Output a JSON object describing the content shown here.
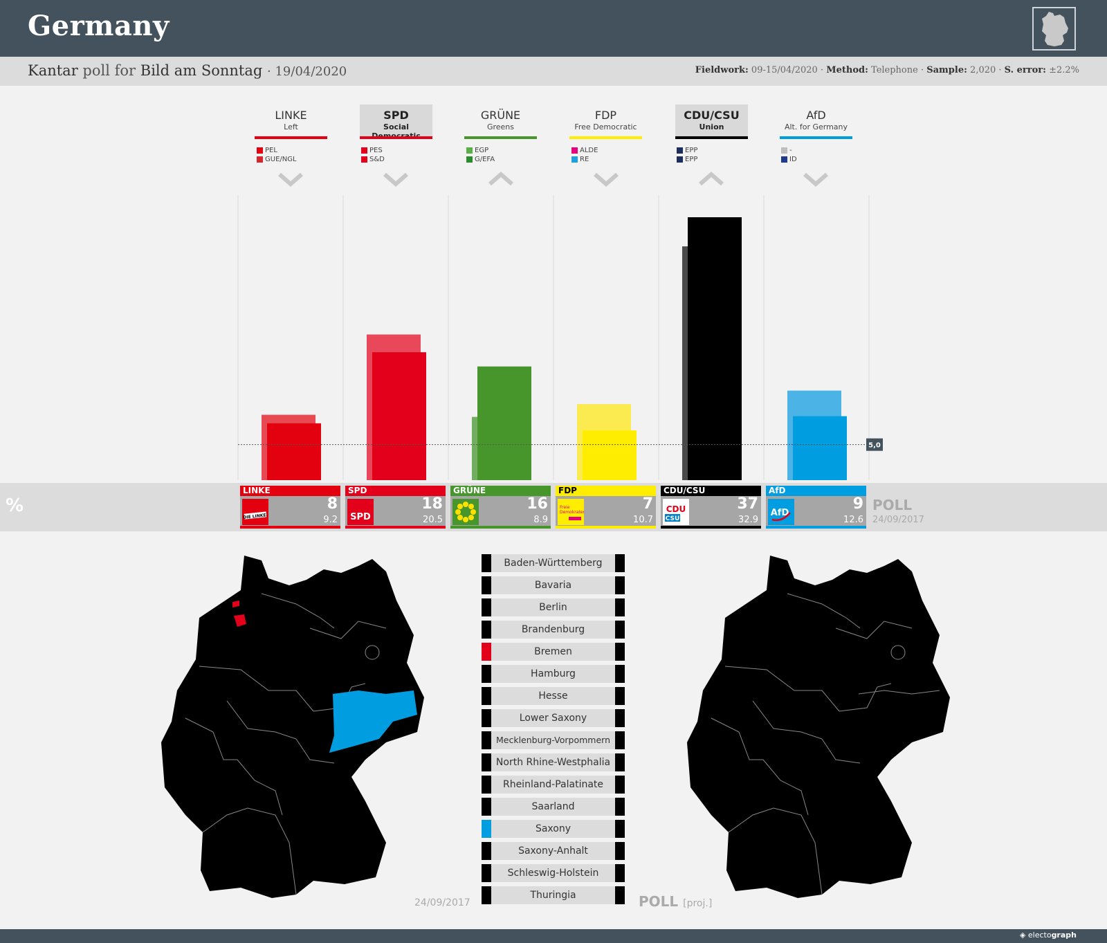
{
  "header": {
    "title": "Germany",
    "pollster": "Kantar",
    "poll_word": "poll for",
    "client": "Bild am Sonntag",
    "date": "· 19/04/2020",
    "fieldwork_label": "Fieldwork:",
    "fieldwork": "09-15/04/2020",
    "method_label": "Method:",
    "method": "Telephone",
    "sample_label": "Sample:",
    "sample": "2,020",
    "error_label": "S. error:",
    "error": "±2.2%"
  },
  "parties": [
    {
      "abbr": "LINKE",
      "name": "Left",
      "color": "#e3000f",
      "highlight": false,
      "trend": "down",
      "eu": [
        {
          "label": "PEL",
          "color": "#e3000f"
        },
        {
          "label": "GUE/NGL",
          "color": "#d8262f"
        }
      ],
      "logo_text": "DIE LINKE."
    },
    {
      "abbr": "SPD",
      "name": "Social Democratic",
      "color": "#e2001a",
      "highlight": true,
      "trend": "down",
      "eu": [
        {
          "label": "PES",
          "color": "#e2001a"
        },
        {
          "label": "S&D",
          "color": "#e2001a"
        }
      ],
      "logo_text": "SPD"
    },
    {
      "abbr": "GRÜNE",
      "name": "Greens",
      "color": "#46962b",
      "highlight": false,
      "trend": "up",
      "eu": [
        {
          "label": "EGP",
          "color": "#57b045"
        },
        {
          "label": "G/EFA",
          "color": "#2a8c2a"
        }
      ],
      "logo_text": ""
    },
    {
      "abbr": "FDP",
      "name": "Free Democratic",
      "color": "#ffed00",
      "highlight": false,
      "trend": "down",
      "eu": [
        {
          "label": "ALDE",
          "color": "#e6007e"
        },
        {
          "label": "RE",
          "color": "#1e9fe0"
        }
      ],
      "logo_text": "Freie Demokraten FDP"
    },
    {
      "abbr": "CDU/CSU",
      "name": "Union",
      "color": "#000000",
      "highlight": true,
      "trend": "up",
      "eu": [
        {
          "label": "EPP",
          "color": "#1f2d5a"
        },
        {
          "label": "EPP",
          "color": "#1f2d5a"
        }
      ],
      "logo_text": "CDU CSU"
    },
    {
      "abbr": "AfD",
      "name": "Alt. for Germany",
      "color": "#009ee0",
      "highlight": false,
      "trend": "down",
      "eu": [
        {
          "label": "-",
          "color": "#bdbdbd"
        },
        {
          "label": "ID",
          "color": "#1f3a8a"
        }
      ],
      "logo_text": "AfD"
    }
  ],
  "chart_data": {
    "type": "bar",
    "categories": [
      "LINKE",
      "SPD",
      "GRÜNE",
      "FDP",
      "CDU/CSU",
      "AfD"
    ],
    "series": [
      {
        "name": "POLL",
        "values": [
          8,
          18,
          16,
          7,
          37,
          9
        ]
      },
      {
        "name": "24/09/2017",
        "values": [
          9.2,
          20.5,
          8.9,
          10.7,
          32.9,
          12.6
        ]
      }
    ],
    "threshold": 5.0,
    "threshold_label": "5,0",
    "ylim": [
      0,
      37
    ]
  },
  "result_row": {
    "unit": "%",
    "poll_label": "POLL",
    "prev_date": "24/09/2017",
    "values": [
      "8",
      "18",
      "16",
      "7",
      "37",
      "9"
    ],
    "prev": [
      "9.2",
      "20.5",
      "8.9",
      "10.7",
      "32.9",
      "12.6"
    ]
  },
  "states": [
    {
      "name": "Baden-Württemberg",
      "prev_color": "#000000",
      "poll_color": "#000000"
    },
    {
      "name": "Bavaria",
      "prev_color": "#000000",
      "poll_color": "#000000"
    },
    {
      "name": "Berlin",
      "prev_color": "#000000",
      "poll_color": "#000000"
    },
    {
      "name": "Brandenburg",
      "prev_color": "#000000",
      "poll_color": "#000000"
    },
    {
      "name": "Bremen",
      "prev_color": "#e2001a",
      "poll_color": "#000000"
    },
    {
      "name": "Hamburg",
      "prev_color": "#000000",
      "poll_color": "#000000"
    },
    {
      "name": "Hesse",
      "prev_color": "#000000",
      "poll_color": "#000000"
    },
    {
      "name": "Lower Saxony",
      "prev_color": "#000000",
      "poll_color": "#000000"
    },
    {
      "name": "Mecklenburg-Vorpommern",
      "prev_color": "#000000",
      "poll_color": "#000000"
    },
    {
      "name": "North Rhine-Westphalia",
      "prev_color": "#000000",
      "poll_color": "#000000"
    },
    {
      "name": "Rheinland-Palatinate",
      "prev_color": "#000000",
      "poll_color": "#000000"
    },
    {
      "name": "Saarland",
      "prev_color": "#000000",
      "poll_color": "#000000"
    },
    {
      "name": "Saxony",
      "prev_color": "#009ee0",
      "poll_color": "#000000"
    },
    {
      "name": "Saxony-Anhalt",
      "prev_color": "#000000",
      "poll_color": "#000000"
    },
    {
      "name": "Schleswig-Holstein",
      "prev_color": "#000000",
      "poll_color": "#000000"
    },
    {
      "name": "Thuringia",
      "prev_color": "#000000",
      "poll_color": "#000000"
    }
  ],
  "maps": {
    "left_date": "24/09/2017",
    "right_label": "POLL",
    "right_suffix": "[proj.]"
  },
  "footer": {
    "brand_a": "electo",
    "brand_b": "graph"
  }
}
